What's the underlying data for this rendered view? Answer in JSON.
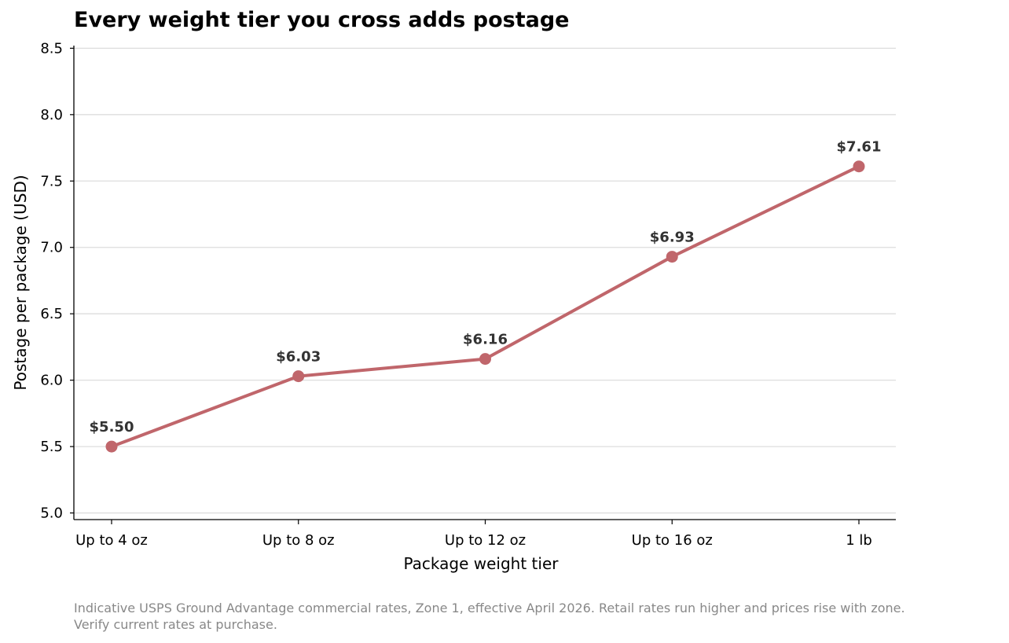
{
  "chart_data": {
    "type": "line",
    "title": "Every weight tier you cross adds postage",
    "xlabel": "Package weight tier",
    "ylabel": "Postage per package (USD)",
    "categories": [
      "Up to 4 oz",
      "Up to 8 oz",
      "Up to 12 oz",
      "Up to 16 oz",
      "1 lb"
    ],
    "series": [
      {
        "values": [
          5.5,
          6.03,
          6.16,
          6.93,
          7.61
        ],
        "data_labels": [
          "$5.50",
          "$6.03",
          "$6.16",
          "$6.93",
          "$7.61"
        ]
      }
    ],
    "ylim": [
      4.95,
      8.52
    ],
    "yticks": [
      5.0,
      5.5,
      6.0,
      6.5,
      7.0,
      7.5,
      8.0,
      8.5
    ],
    "ytick_labels": [
      "5.0",
      "5.5",
      "6.0",
      "6.5",
      "7.0",
      "7.5",
      "8.0",
      "8.5"
    ],
    "grid": "horizontal",
    "line_color": "#c0666b",
    "footnote": "Indicative USPS Ground Advantage commercial rates, Zone 1, effective April 2026. Retail rates run higher and prices rise with zone.\nVerify current rates at purchase."
  }
}
